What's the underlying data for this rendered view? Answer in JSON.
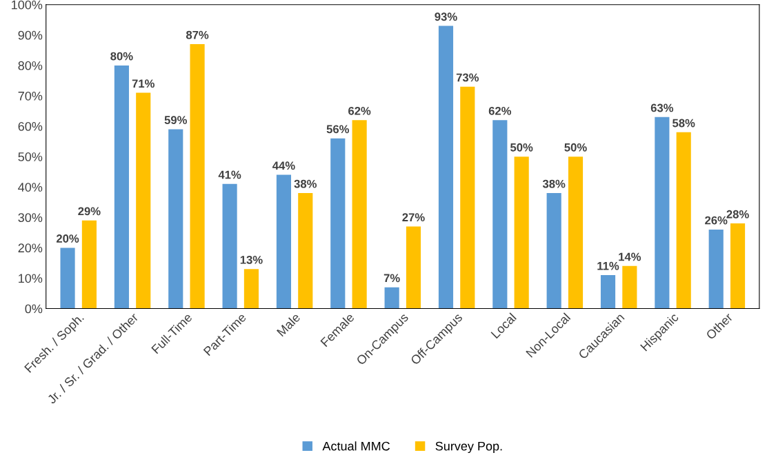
{
  "chart_data": {
    "type": "bar",
    "categories": [
      "Fresh. / Soph.",
      "Jr. / Sr. / Grad. / Other",
      "Full-Time",
      "Part-Time",
      "Male",
      "Female",
      "On-Campus",
      "Off-Campus",
      "Local",
      "Non-Local",
      "Caucasian",
      "Hispanic",
      "Other"
    ],
    "series": [
      {
        "name": "Actual MMC",
        "color": "#5b9bd5",
        "values": [
          20,
          80,
          59,
          41,
          44,
          56,
          7,
          93,
          62,
          38,
          11,
          63,
          26
        ],
        "value_labels": [
          "20%",
          "80%",
          "59%",
          "41%",
          "44%",
          "56%",
          "7%",
          "93%",
          "62%",
          "38%",
          "11%",
          "63%",
          "26%"
        ]
      },
      {
        "name": "Survey Pop.",
        "color": "#ffc000",
        "values": [
          29,
          71,
          87,
          13,
          38,
          62,
          27,
          73,
          50,
          50,
          14,
          58,
          28
        ],
        "value_labels": [
          "29%",
          "71%",
          "87%",
          "13%",
          "38%",
          "62%",
          "27%",
          "73%",
          "50%",
          "50%",
          "14%",
          "58%",
          "28%"
        ]
      }
    ],
    "ylim": [
      0,
      100
    ],
    "yticks": [
      {
        "value": 0,
        "label": "0%"
      },
      {
        "value": 10,
        "label": "10%"
      },
      {
        "value": 20,
        "label": "20%"
      },
      {
        "value": 30,
        "label": "30%"
      },
      {
        "value": 40,
        "label": "40%"
      },
      {
        "value": 50,
        "label": "50%"
      },
      {
        "value": 60,
        "label": "60%"
      },
      {
        "value": 70,
        "label": "70%"
      },
      {
        "value": 80,
        "label": "80%"
      },
      {
        "value": 90,
        "label": "90%"
      },
      {
        "value": 100,
        "label": "100%"
      }
    ],
    "legend": "bottom",
    "grid": false
  }
}
